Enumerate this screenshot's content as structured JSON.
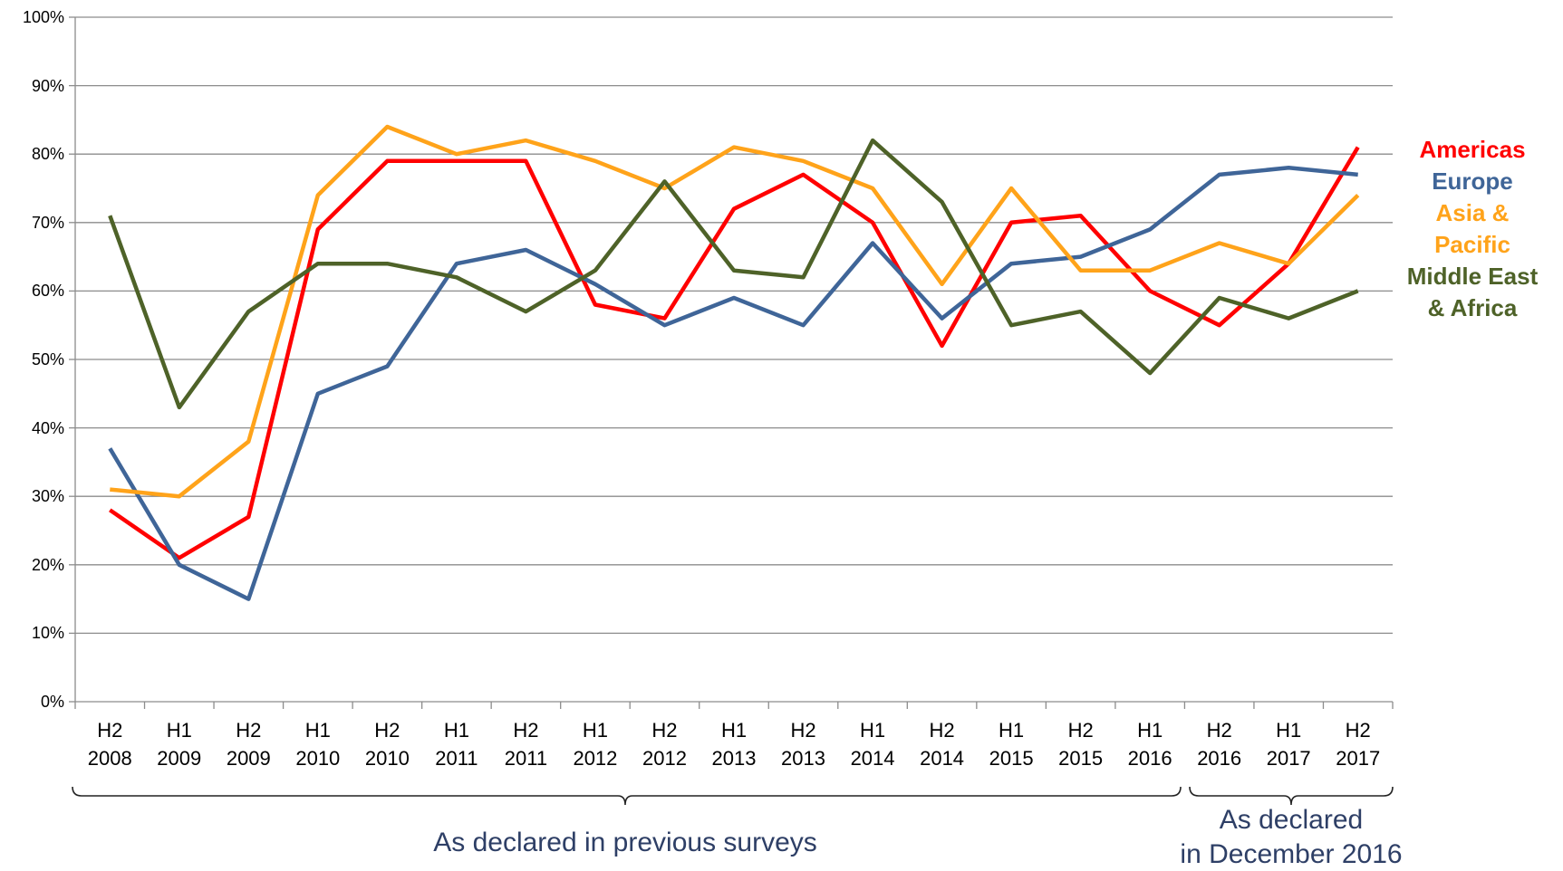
{
  "chart_data": {
    "type": "line",
    "categories": [
      "H2 2008",
      "H1 2009",
      "H2 2009",
      "H1 2010",
      "H2 2010",
      "H1 2011",
      "H2 2011",
      "H1 2012",
      "H2 2012",
      "H1 2013",
      "H2 2013",
      "H1 2014",
      "H2 2014",
      "H1 2015",
      "H2 2015",
      "H1 2016",
      "H2 2016",
      "H1 2017",
      "H2 2017"
    ],
    "series": [
      {
        "name": "Americas",
        "color": "#ff0000",
        "values": [
          28,
          21,
          27,
          69,
          79,
          79,
          79,
          58,
          56,
          72,
          77,
          70,
          52,
          70,
          71,
          60,
          55,
          64,
          81
        ]
      },
      {
        "name": "Europe",
        "color": "#3f6598",
        "values": [
          37,
          20,
          15,
          45,
          49,
          64,
          66,
          61,
          55,
          59,
          55,
          67,
          56,
          64,
          65,
          69,
          77,
          78,
          77
        ]
      },
      {
        "name": "Asia & Pacific",
        "color": "#ffa31a",
        "values": [
          31,
          30,
          38,
          74,
          84,
          80,
          82,
          79,
          75,
          81,
          79,
          75,
          61,
          75,
          63,
          63,
          67,
          64,
          74
        ]
      },
      {
        "name": "Middle East & Africa",
        "color": "#4e6228",
        "values": [
          71,
          43,
          57,
          64,
          64,
          62,
          57,
          63,
          76,
          63,
          62,
          82,
          73,
          55,
          57,
          48,
          59,
          56,
          60
        ]
      }
    ],
    "ylim": [
      0,
      100
    ],
    "yticks": [
      {
        "value": 0,
        "label": "0%"
      },
      {
        "value": 10,
        "label": "10%"
      },
      {
        "value": 20,
        "label": "20%"
      },
      {
        "value": 30,
        "label": "30%"
      },
      {
        "value": 40,
        "label": "40%"
      },
      {
        "value": 50,
        "label": "50%"
      },
      {
        "value": 60,
        "label": "60%"
      },
      {
        "value": 70,
        "label": "70%"
      },
      {
        "value": 80,
        "label": "80%"
      },
      {
        "value": 90,
        "label": "90%"
      },
      {
        "value": 100,
        "label": "100%"
      }
    ],
    "grid": true,
    "legend": "right",
    "annotations": [
      "As declared in previous surveys",
      "As declared\nin December 2016"
    ]
  }
}
